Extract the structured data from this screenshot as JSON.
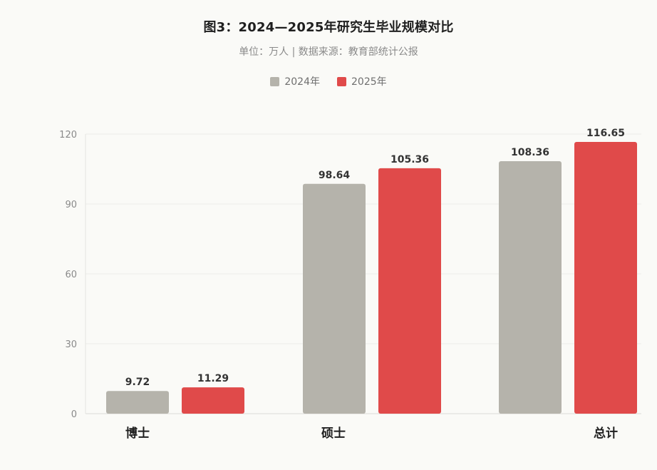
{
  "chart_data": {
    "type": "bar",
    "title": "图3：2024—2025年研究生毕业规模对比",
    "subtitle": "单位：万人 | 数据来源：教育部统计公报",
    "categories": [
      "博士",
      "硕士",
      "总计"
    ],
    "series": [
      {
        "name": "2024年",
        "color": "#b5b3ab",
        "values": [
          9.72,
          98.64,
          108.36
        ],
        "labels": [
          "9.72",
          "98.64",
          "108.36"
        ]
      },
      {
        "name": "2025年",
        "color": "#e04a4a",
        "values": [
          11.29,
          105.36,
          116.65
        ],
        "labels": [
          "11.29",
          "105.36",
          "116.65"
        ]
      }
    ],
    "yticks": [
      "0",
      "30",
      "60",
      "90",
      "120"
    ],
    "ylim": [
      0,
      120
    ],
    "xlabel": "",
    "ylabel": "",
    "grid": true,
    "legend_position": "top-center"
  }
}
